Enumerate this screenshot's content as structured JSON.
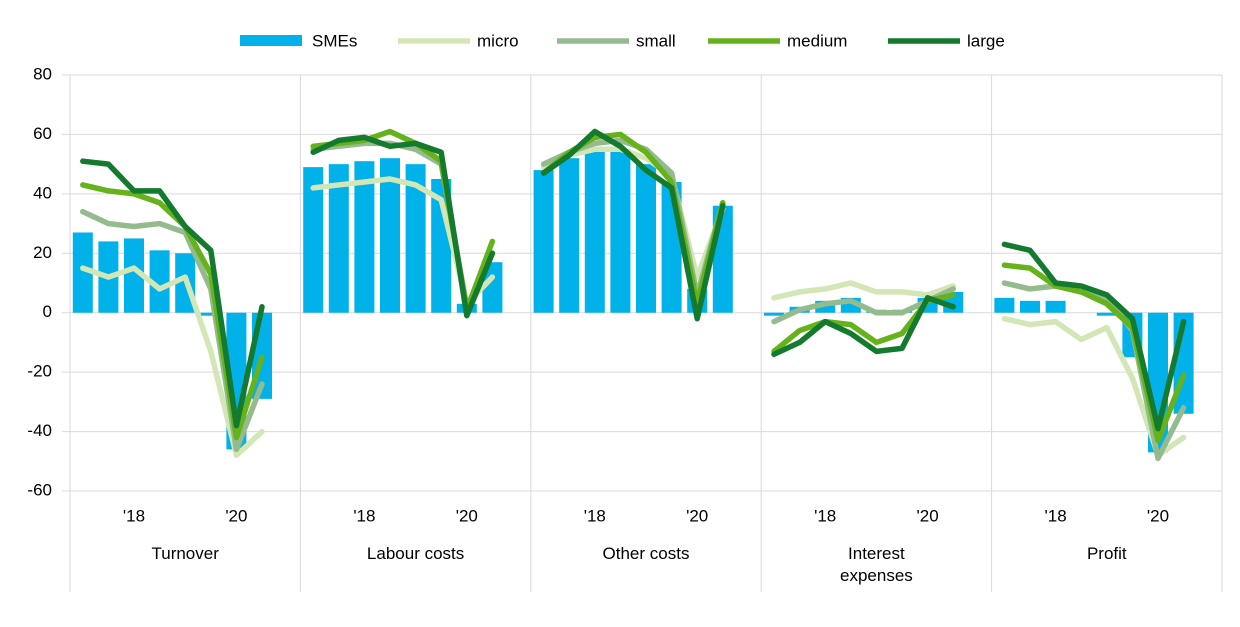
{
  "chart_data": {
    "type": "bar-line",
    "ylim": [
      -60,
      80
    ],
    "yticks": [
      -60,
      -40,
      -20,
      0,
      20,
      40,
      60,
      80
    ],
    "grid": true,
    "legend": [
      {
        "name": "SMEs",
        "kind": "bar",
        "color": "#00b1ea"
      },
      {
        "name": "micro",
        "kind": "line",
        "color": "#d3e6b5"
      },
      {
        "name": "small",
        "kind": "line",
        "color": "#93bb8d"
      },
      {
        "name": "medium",
        "kind": "line",
        "color": "#66b21b"
      },
      {
        "name": "large",
        "kind": "line",
        "color": "#137a2e"
      }
    ],
    "panels": [
      {
        "title": "Turnover",
        "categories": [
          null,
          null,
          "'18",
          null,
          null,
          null,
          "'20",
          null
        ],
        "series": [
          {
            "values": [
              27,
              24,
              25,
              21,
              20,
              -1,
              -46,
              -29
            ]
          },
          {
            "values": [
              15,
              12,
              15,
              8,
              12,
              -13,
              -48,
              -40
            ]
          },
          {
            "values": [
              34,
              30,
              29,
              30,
              27,
              8,
              -46,
              -24
            ]
          },
          {
            "values": [
              43,
              41,
              40,
              37,
              29,
              13,
              -42,
              -15
            ]
          },
          {
            "values": [
              51,
              50,
              41,
              41,
              29,
              21,
              -38,
              2
            ]
          }
        ]
      },
      {
        "title": "Labour costs",
        "categories": [
          null,
          null,
          "'18",
          null,
          null,
          null,
          "'20",
          null
        ],
        "series": [
          {
            "values": [
              49,
              50,
              51,
              52,
              50,
              45,
              3,
              17
            ]
          },
          {
            "values": [
              42,
              43,
              44,
              45,
              43,
              38,
              3,
              12
            ]
          },
          {
            "values": [
              55,
              56,
              57,
              57,
              55,
              50,
              2,
              20
            ]
          },
          {
            "values": [
              56,
              57,
              58,
              61,
              57,
              51,
              1,
              24
            ]
          },
          {
            "values": [
              54,
              58,
              59,
              56,
              57,
              54,
              -1,
              20
            ]
          }
        ]
      },
      {
        "title": "Other costs",
        "categories": [
          null,
          null,
          "'18",
          null,
          null,
          null,
          "'20",
          null
        ],
        "series": [
          {
            "values": [
              48,
              52,
              55,
              55,
              50,
              44,
              8,
              36
            ]
          },
          {
            "values": [
              49,
              53,
              55,
              55,
              52,
              46,
              12,
              35
            ]
          },
          {
            "values": [
              50,
              54,
              57,
              58,
              55,
              47,
              6,
              37
            ]
          },
          {
            "values": [
              47,
              54,
              59,
              60,
              54,
              44,
              3,
              37
            ]
          },
          {
            "values": [
              47,
              53,
              61,
              56,
              48,
              42,
              -2,
              36
            ]
          }
        ]
      },
      {
        "title": "Interest expenses",
        "categories": [
          null,
          null,
          "'18",
          null,
          null,
          null,
          "'20",
          null
        ],
        "series": [
          {
            "values": [
              -1,
              2,
              4,
              5,
              1,
              1,
              5,
              7
            ]
          },
          {
            "values": [
              5,
              7,
              8,
              10,
              7,
              7,
              6,
              9
            ]
          },
          {
            "values": [
              -3,
              1,
              3,
              4,
              0,
              0,
              4,
              8
            ]
          },
          {
            "values": [
              -13,
              -6,
              -3,
              -4,
              -10,
              -7,
              4,
              6
            ]
          },
          {
            "values": [
              -14,
              -10,
              -3,
              -7,
              -13,
              -12,
              5,
              2
            ]
          }
        ]
      },
      {
        "title": "Profit",
        "categories": [
          null,
          null,
          "'18",
          null,
          null,
          null,
          "'20",
          null
        ],
        "series": [
          {
            "values": [
              5,
              4,
              4,
              0,
              -1,
              -15,
              -47,
              -34
            ]
          },
          {
            "values": [
              -2,
              -4,
              -3,
              -9,
              -5,
              -22,
              -48,
              -42
            ]
          },
          {
            "values": [
              10,
              8,
              9,
              7,
              5,
              -6,
              -49,
              -32
            ]
          },
          {
            "values": [
              16,
              15,
              9,
              7,
              3,
              -5,
              -43,
              -21
            ]
          },
          {
            "values": [
              23,
              21,
              10,
              9,
              6,
              -2,
              -39,
              -3
            ]
          }
        ]
      }
    ]
  }
}
